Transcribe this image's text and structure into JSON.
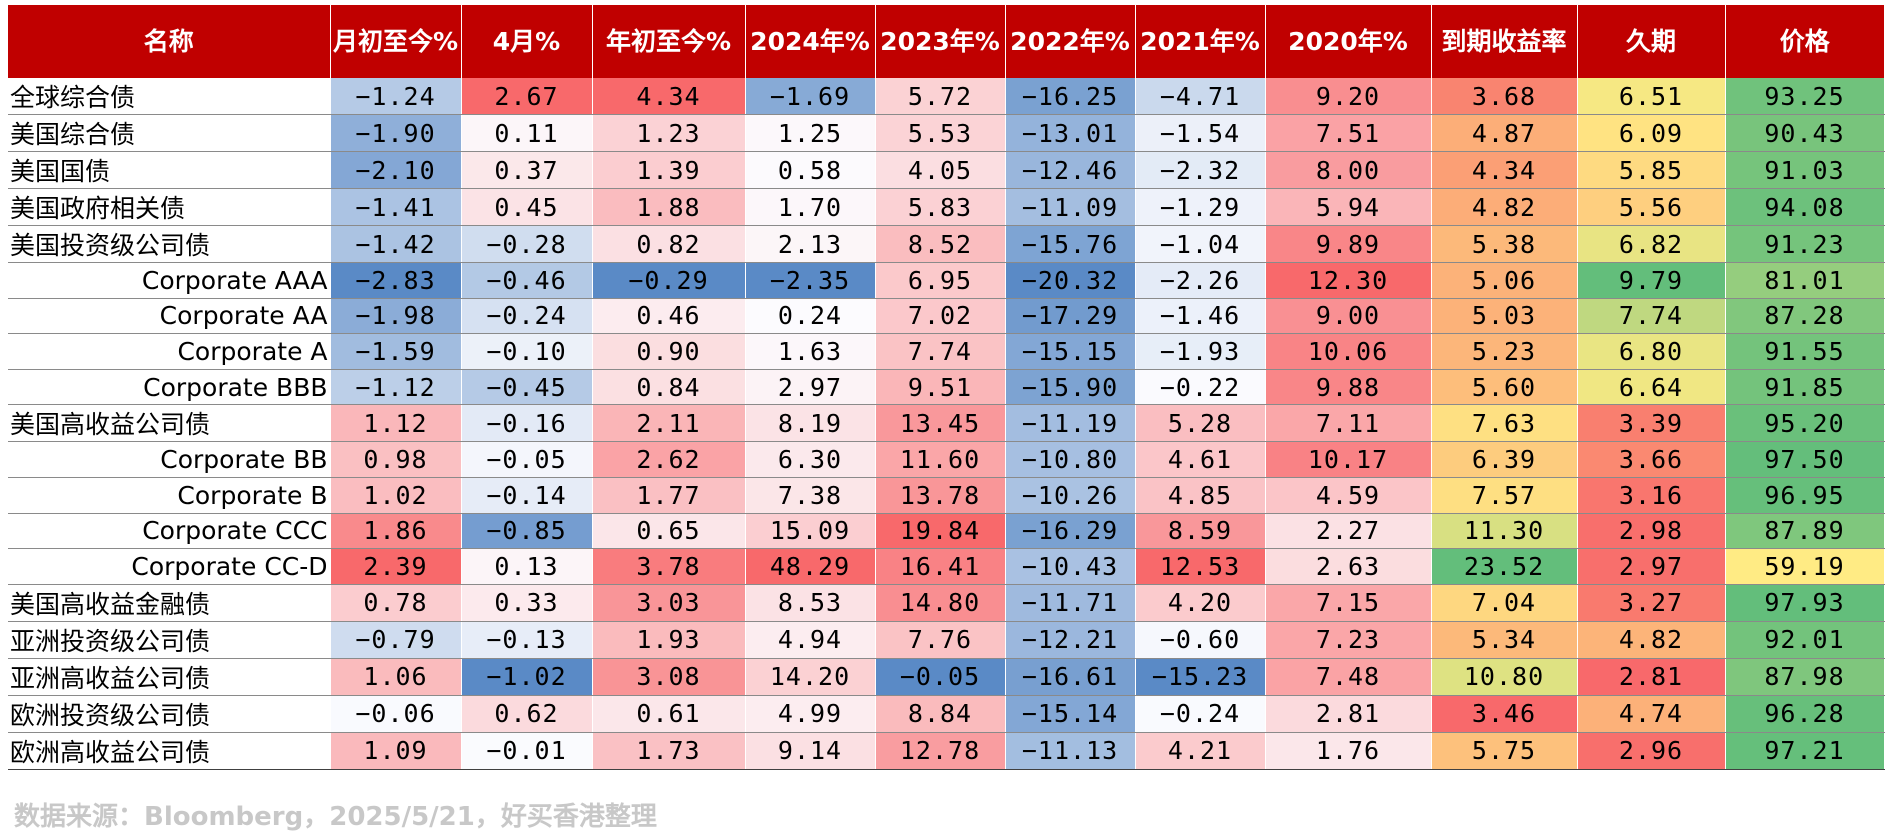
{
  "table": {
    "headers": [
      "名称",
      "月初至今%",
      "4月%",
      "年初至今%",
      "2024年%",
      "2023年%",
      "2022年%",
      "2021年%",
      "2020年%",
      "到期收益率",
      "久期",
      "价格"
    ],
    "rows": [
      {
        "name": "全球综合债",
        "indent": 0,
        "values": [
          "-1.24",
          "2.67",
          "4.34",
          "-1.69",
          "5.72",
          "-16.25",
          "-4.71",
          "9.20",
          "3.68",
          "6.51",
          "93.25"
        ]
      },
      {
        "name": "美国综合债",
        "indent": 0,
        "values": [
          "-1.90",
          "0.11",
          "1.23",
          "1.25",
          "5.53",
          "-13.01",
          "-1.54",
          "7.51",
          "4.87",
          "6.09",
          "90.43"
        ]
      },
      {
        "name": "美国国债",
        "indent": 0,
        "values": [
          "-2.10",
          "0.37",
          "1.39",
          "0.58",
          "4.05",
          "-12.46",
          "-2.32",
          "8.00",
          "4.34",
          "5.85",
          "91.03"
        ]
      },
      {
        "name": "美国政府相关债",
        "indent": 0,
        "values": [
          "-1.41",
          "0.45",
          "1.88",
          "1.70",
          "5.83",
          "-11.09",
          "-1.29",
          "5.94",
          "4.82",
          "5.56",
          "94.08"
        ]
      },
      {
        "name": "美国投资级公司债",
        "indent": 0,
        "values": [
          "-1.42",
          "-0.28",
          "0.82",
          "2.13",
          "8.52",
          "-15.76",
          "-1.04",
          "9.89",
          "5.38",
          "6.82",
          "91.23"
        ]
      },
      {
        "name": "Corporate AAA",
        "indent": 1,
        "values": [
          "-2.83",
          "-0.46",
          "-0.29",
          "-2.35",
          "6.95",
          "-20.32",
          "-2.26",
          "12.30",
          "5.06",
          "9.79",
          "81.01"
        ]
      },
      {
        "name": "Corporate AA",
        "indent": 1,
        "values": [
          "-1.98",
          "-0.24",
          "0.46",
          "0.24",
          "7.02",
          "-17.29",
          "-1.46",
          "9.00",
          "5.03",
          "7.74",
          "87.28"
        ]
      },
      {
        "name": "Corporate A",
        "indent": 1,
        "values": [
          "-1.59",
          "-0.10",
          "0.90",
          "1.63",
          "7.74",
          "-15.15",
          "-1.93",
          "10.06",
          "5.23",
          "6.80",
          "91.55"
        ]
      },
      {
        "name": "Corporate BBB",
        "indent": 1,
        "values": [
          "-1.12",
          "-0.45",
          "0.84",
          "2.97",
          "9.51",
          "-15.90",
          "-0.22",
          "9.88",
          "5.60",
          "6.64",
          "91.85"
        ]
      },
      {
        "name": "美国高收益公司债",
        "indent": 0,
        "values": [
          "1.12",
          "-0.16",
          "2.11",
          "8.19",
          "13.45",
          "-11.19",
          "5.28",
          "7.11",
          "7.63",
          "3.39",
          "95.20"
        ]
      },
      {
        "name": "Corporate BB",
        "indent": 1,
        "values": [
          "0.98",
          "-0.05",
          "2.62",
          "6.30",
          "11.60",
          "-10.80",
          "4.61",
          "10.17",
          "6.39",
          "3.66",
          "97.50"
        ]
      },
      {
        "name": "Corporate B",
        "indent": 1,
        "values": [
          "1.02",
          "-0.14",
          "1.77",
          "7.38",
          "13.78",
          "-10.26",
          "4.85",
          "4.59",
          "7.57",
          "3.16",
          "96.95"
        ]
      },
      {
        "name": "Corporate CCC",
        "indent": 1,
        "values": [
          "1.86",
          "-0.85",
          "0.65",
          "15.09",
          "19.84",
          "-16.29",
          "8.59",
          "2.27",
          "11.30",
          "2.98",
          "87.89"
        ]
      },
      {
        "name": "Corporate CC-D",
        "indent": 1,
        "values": [
          "2.39",
          "0.13",
          "3.78",
          "48.29",
          "16.41",
          "-10.43",
          "12.53",
          "2.63",
          "23.52",
          "2.97",
          "59.19"
        ]
      },
      {
        "name": "美国高收益金融债",
        "indent": 0,
        "values": [
          "0.78",
          "0.33",
          "3.03",
          "8.53",
          "14.80",
          "-11.71",
          "4.20",
          "7.15",
          "7.04",
          "3.27",
          "97.93"
        ]
      },
      {
        "name": "亚洲投资级公司债",
        "indent": 0,
        "values": [
          "-0.79",
          "-0.13",
          "1.93",
          "4.94",
          "7.76",
          "-12.21",
          "-0.60",
          "7.23",
          "5.34",
          "4.82",
          "92.01"
        ]
      },
      {
        "name": "亚洲高收益公司债",
        "indent": 0,
        "values": [
          "1.06",
          "-1.02",
          "3.08",
          "14.20",
          "-0.05",
          "-16.61",
          "-15.23",
          "7.48",
          "10.80",
          "2.81",
          "87.98"
        ]
      },
      {
        "name": "欧洲投资级公司债",
        "indent": 0,
        "values": [
          "-0.06",
          "0.62",
          "0.61",
          "4.99",
          "8.84",
          "-15.14",
          "-0.24",
          "2.81",
          "3.46",
          "4.74",
          "96.28"
        ]
      },
      {
        "name": "欧洲高收益公司债",
        "indent": 0,
        "values": [
          "1.09",
          "-0.01",
          "1.73",
          "9.14",
          "12.78",
          "-11.13",
          "4.21",
          "1.76",
          "5.75",
          "2.96",
          "97.21"
        ]
      }
    ]
  },
  "colors": {
    "header_bg": "#c00000",
    "header_text": "#ffffff",
    "negative_max": "#5a8ac6",
    "positive_max": "#f8696b",
    "neutral": "#fcfcff",
    "scale_low": "#f8696b",
    "scale_mid": "#ffeb84",
    "scale_high": "#63be7b"
  },
  "footer": {
    "source": "数据来源：Bloomberg，2025/5/21，好买香港整理"
  }
}
